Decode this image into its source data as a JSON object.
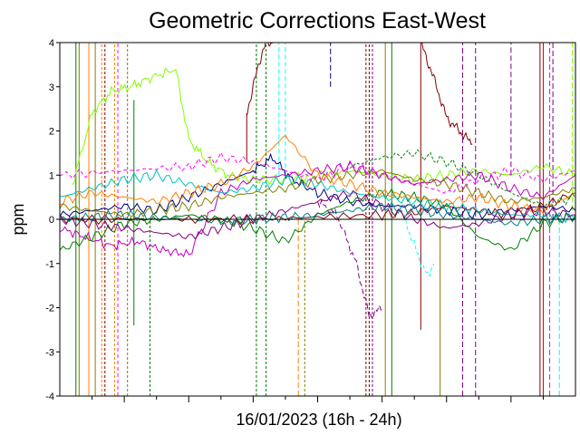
{
  "chart_data": {
    "type": "line",
    "title": "Geometric Corrections East-West",
    "xlabel": "16/01/2023 (16h - 24h)",
    "ylabel": "ppm",
    "ylim": [
      -4,
      4
    ],
    "xlim": [
      16,
      24
    ],
    "y_ticks": [
      "4",
      "3",
      "2",
      "1",
      "0",
      "-1",
      "-2",
      "-3",
      "-4"
    ],
    "y_tick_values": [
      4,
      3,
      2,
      1,
      0,
      -1,
      -2,
      -3,
      -4
    ],
    "x_major_ticks": [
      17,
      18,
      19,
      20,
      21,
      22,
      23
    ],
    "x_minor_ticks": [
      16.5,
      17.5,
      18.5,
      19.5,
      20.5,
      21.5,
      22.5,
      23.5
    ],
    "series": [
      {
        "color": "#80ff00",
        "dash": "solid",
        "x": [
          16.2,
          16.5,
          16.8,
          17.1,
          17.4,
          17.8,
          18.0,
          18.3,
          18.6,
          19.0,
          19.5,
          20.0,
          20.5,
          21.0,
          21.5,
          22.0,
          22.5,
          23.0,
          23.5,
          24.0
        ],
        "y": [
          0.8,
          2.4,
          2.9,
          3.0,
          3.2,
          3.4,
          1.8,
          1.3,
          1.0,
          0.9,
          0.9,
          1.0,
          1.1,
          1.0,
          0.9,
          1.0,
          1.1,
          1.0,
          1.2,
          1.0
        ]
      },
      {
        "color": "#000080",
        "dash": "solid",
        "x": [
          16.0,
          16.5,
          17.0,
          17.5,
          18.0,
          18.5,
          19.0,
          19.3,
          19.6,
          20.0,
          20.5,
          21.0,
          21.5,
          22.0,
          22.5,
          23.0,
          23.5,
          24.0
        ],
        "y": [
          0.1,
          0.2,
          0.3,
          0.2,
          0.5,
          0.8,
          1.1,
          1.4,
          0.9,
          0.6,
          0.4,
          0.3,
          0.3,
          0.2,
          0.1,
          0.2,
          0.3,
          0.2
        ]
      },
      {
        "color": "#c000c0",
        "dash": "solid",
        "x": [
          16.0,
          16.4,
          16.8,
          17.2,
          17.6,
          18.0,
          18.5,
          19.0,
          19.5,
          20.0,
          20.5,
          21.0,
          21.5,
          22.0,
          22.5,
          23.0,
          23.5,
          24.0
        ],
        "y": [
          -0.2,
          -0.4,
          -0.6,
          -0.5,
          -0.7,
          -0.8,
          0.6,
          0.9,
          1.0,
          1.1,
          1.2,
          1.0,
          0.8,
          0.9,
          1.0,
          0.7,
          0.5,
          1.0
        ]
      },
      {
        "color": "#800000",
        "dash": "solid",
        "x": [
          16.0,
          17.0,
          18.0,
          19.0,
          20.0,
          21.0,
          21.5,
          22.0,
          22.5,
          23.0,
          23.5,
          24.0
        ],
        "y": [
          0.0,
          0.0,
          0.0,
          0.0,
          0.05,
          0.1,
          0.15,
          0.3,
          0.2,
          0.1,
          0.3,
          0.6
        ]
      },
      {
        "color": "#008000",
        "dash": "solid",
        "x": [
          16.0,
          16.5,
          17.0,
          17.5,
          18.0,
          18.5,
          19.0,
          19.5,
          20.0,
          20.5,
          21.0,
          21.5,
          22.0,
          22.5,
          23.0,
          23.5,
          24.0
        ],
        "y": [
          -0.7,
          -0.4,
          -0.1,
          0.0,
          0.1,
          0.0,
          -0.2,
          -0.5,
          0.1,
          0.4,
          0.6,
          0.5,
          0.3,
          -0.4,
          -0.7,
          -0.1,
          0.1
        ]
      },
      {
        "color": "#00c0c0",
        "dash": "solid",
        "x": [
          16.0,
          16.5,
          17.0,
          17.5,
          18.0,
          18.5,
          19.0,
          19.5,
          20.0,
          20.5,
          21.0,
          21.5,
          22.0,
          22.5,
          23.0,
          23.5,
          24.0
        ],
        "y": [
          0.5,
          0.7,
          0.9,
          1.0,
          0.8,
          0.6,
          0.7,
          0.9,
          0.8,
          0.6,
          0.5,
          0.4,
          0.3,
          0.2,
          0.1,
          0.1,
          0.0
        ]
      },
      {
        "color": "#808000",
        "dash": "solid",
        "x": [
          16.0,
          16.5,
          17.0,
          17.5,
          18.0,
          18.5,
          19.0,
          19.5,
          20.0,
          20.5,
          21.0,
          21.5,
          22.0,
          22.5,
          23.0,
          23.5,
          24.0
        ],
        "y": [
          0.3,
          0.2,
          0.1,
          0.2,
          0.3,
          0.5,
          0.6,
          0.7,
          0.9,
          1.0,
          1.1,
          0.9,
          0.8,
          0.6,
          0.4,
          0.5,
          0.7
        ]
      },
      {
        "color": "#ff8000",
        "dash": "solid",
        "x": [
          16.0,
          16.5,
          17.0,
          17.5,
          18.0,
          18.5,
          19.0,
          19.5,
          20.0,
          20.5,
          21.0,
          21.5,
          22.0,
          22.5,
          23.0,
          23.5,
          24.0
        ],
        "y": [
          0.4,
          0.6,
          0.5,
          0.4,
          0.6,
          0.8,
          1.2,
          1.9,
          1.0,
          0.8,
          0.6,
          0.5,
          0.4,
          0.5,
          0.3,
          0.2,
          0.6
        ]
      },
      {
        "color": "#800080",
        "dash": "solid",
        "x": [
          16.0,
          16.5,
          17.0,
          17.5,
          18.0,
          18.5,
          19.0,
          19.5,
          20.0,
          20.5,
          21.0,
          21.5,
          22.0,
          22.5,
          23.0,
          23.5,
          24.0
        ],
        "y": [
          0.0,
          -0.1,
          -0.2,
          -0.3,
          -0.4,
          -0.2,
          0.0,
          0.2,
          0.4,
          0.6,
          0.3,
          0.0,
          -0.2,
          -0.1,
          0.1,
          0.2,
          0.1
        ]
      },
      {
        "color": "#008080",
        "dash": "solid",
        "x": [
          16.0,
          16.5,
          17.0,
          17.5,
          18.0,
          18.5,
          19.0,
          19.5,
          20.0,
          20.5,
          21.0,
          21.5,
          22.0,
          22.5,
          23.0,
          23.5,
          24.0
        ],
        "y": [
          0.0,
          0.05,
          0.1,
          0.05,
          0.0,
          -0.05,
          0.0,
          0.05,
          0.1,
          0.2,
          0.3,
          0.2,
          0.1,
          0.0,
          -0.1,
          0.0,
          0.05
        ]
      },
      {
        "color": "#800000",
        "dash": "solid",
        "x": [
          18.9,
          19.0,
          19.1,
          19.2,
          19.3
        ],
        "y": [
          2.4,
          3.0,
          3.6,
          4.0,
          4.0
        ]
      },
      {
        "color": "#800000",
        "dash": "solid",
        "x": [
          21.6,
          21.8,
          22.0,
          22.2,
          22.4
        ],
        "y": [
          4.0,
          3.2,
          2.3,
          2.0,
          1.7
        ]
      },
      {
        "color": "#ff00ff",
        "dash": "4,3",
        "x": [
          16.0,
          17.0,
          18.0,
          18.5,
          19.0,
          19.5,
          20.0,
          20.5,
          21.0,
          21.5,
          22.0,
          22.5,
          23.0,
          23.5,
          24.0
        ],
        "y": [
          1.0,
          1.1,
          1.2,
          1.4,
          1.3,
          1.1,
          0.9,
          1.2,
          1.0,
          0.8,
          0.6,
          0.9,
          1.1,
          0.9,
          1.1
        ]
      },
      {
        "color": "#800080",
        "dash": "6,3",
        "x": [
          20.0,
          20.3,
          20.6,
          20.8,
          21.0
        ],
        "y": [
          0.4,
          0.1,
          -1.0,
          -2.2,
          -2.0
        ]
      },
      {
        "color": "#00ffff",
        "dash": "4,3",
        "x": [
          21.3,
          21.5,
          21.7,
          21.8
        ],
        "y": [
          0.2,
          -0.6,
          -1.3,
          -1.0
        ]
      },
      {
        "color": "#008000",
        "dash": "3,2",
        "x": [
          20.5,
          21.0,
          21.5,
          22.0,
          22.5,
          23.0,
          23.5,
          24.0
        ],
        "y": [
          1.2,
          1.4,
          1.5,
          1.3,
          1.0,
          0.6,
          0.3,
          0.5
        ]
      }
    ],
    "spikes": [
      {
        "color": "#008000",
        "dash": "solid",
        "x": 16.25,
        "y1": -4,
        "y2": 4
      },
      {
        "color": "#808000",
        "dash": "solid",
        "x": 16.3,
        "y1": -4,
        "y2": 4
      },
      {
        "color": "#ff8000",
        "dash": "solid",
        "x": 16.45,
        "y1": -4,
        "y2": 4
      },
      {
        "color": "#808000",
        "dash": "solid",
        "x": 16.55,
        "y1": -4,
        "y2": 4
      },
      {
        "color": "#ff8000",
        "dash": "3,2",
        "x": 16.65,
        "y1": -4,
        "y2": 4
      },
      {
        "color": "#800000",
        "dash": "3,2",
        "x": 16.7,
        "y1": -4,
        "y2": 4
      },
      {
        "color": "#ff8000",
        "dash": "3,2",
        "x": 16.85,
        "y1": -4,
        "y2": 4
      },
      {
        "color": "#ff00ff",
        "dash": "4,3",
        "x": 16.9,
        "y1": -4,
        "y2": 4
      },
      {
        "color": "#808000",
        "dash": "3,2",
        "x": 17.05,
        "y1": -4,
        "y2": 4
      },
      {
        "color": "#008000",
        "dash": "solid",
        "x": 17.15,
        "y1": -2.4,
        "y2": 2.7
      },
      {
        "color": "#008000",
        "dash": "3,2",
        "x": 17.4,
        "y1": -4,
        "y2": 0
      },
      {
        "color": "#800000",
        "dash": "solid",
        "x": 18.9,
        "y1": 1.3,
        "y2": 2.4
      },
      {
        "color": "#008000",
        "dash": "3,2",
        "x": 19.05,
        "y1": -4,
        "y2": 4
      },
      {
        "color": "#008000",
        "dash": "3,2",
        "x": 19.2,
        "y1": -4,
        "y2": 4
      },
      {
        "color": "#00ffff",
        "dash": "5,3",
        "x": 19.4,
        "y1": 1.0,
        "y2": 4
      },
      {
        "color": "#00ffff",
        "dash": "5,3",
        "x": 19.5,
        "y1": 1.0,
        "y2": 4
      },
      {
        "color": "#ff8000",
        "dash": "6,3",
        "x": 19.7,
        "y1": -4,
        "y2": 0
      },
      {
        "color": "#808000",
        "dash": "3,2",
        "x": 19.8,
        "y1": -4,
        "y2": 0
      },
      {
        "color": "#000080",
        "dash": "6,3",
        "x": 20.2,
        "y1": 3.0,
        "y2": 4
      },
      {
        "color": "#800000",
        "dash": "3,2",
        "x": 20.75,
        "y1": -4,
        "y2": 4
      },
      {
        "color": "#800000",
        "dash": "3,2",
        "x": 20.8,
        "y1": -4,
        "y2": 4
      },
      {
        "color": "#800080",
        "dash": "3,2",
        "x": 20.85,
        "y1": -4,
        "y2": 4
      },
      {
        "color": "#808000",
        "dash": "solid",
        "x": 21.05,
        "y1": -4,
        "y2": 4
      },
      {
        "color": "#008000",
        "dash": "solid",
        "x": 21.15,
        "y1": -4,
        "y2": 4
      },
      {
        "color": "#800000",
        "dash": "solid",
        "x": 21.6,
        "y1": -2.5,
        "y2": 4
      },
      {
        "color": "#808000",
        "dash": "solid",
        "x": 21.9,
        "y1": -4,
        "y2": 0
      },
      {
        "color": "#800080",
        "dash": "6,3",
        "x": 22.25,
        "y1": -4,
        "y2": 4
      },
      {
        "color": "#800080",
        "dash": "6,3",
        "x": 22.45,
        "y1": -4,
        "y2": 4
      },
      {
        "color": "#800080",
        "dash": "6,3",
        "x": 23.0,
        "y1": 1.0,
        "y2": 4
      },
      {
        "color": "#800000",
        "dash": "solid",
        "x": 23.45,
        "y1": -4,
        "y2": 4
      },
      {
        "color": "#c00000",
        "dash": "solid",
        "x": 23.5,
        "y1": -4,
        "y2": 4
      },
      {
        "color": "#ff00ff",
        "dash": "6,3",
        "x": 23.6,
        "y1": -4,
        "y2": 4
      },
      {
        "color": "#800080",
        "dash": "6,3",
        "x": 23.65,
        "y1": 0,
        "y2": 4
      },
      {
        "color": "#00ffff",
        "dash": "6,3",
        "x": 23.75,
        "y1": -4,
        "y2": 0
      },
      {
        "color": "#80ff00",
        "dash": "6,3",
        "x": 23.95,
        "y1": 0.2,
        "y2": 4
      },
      {
        "color": "#80ff00",
        "dash": "6,3",
        "x": 24.05,
        "y1": -1.5,
        "y2": 0.5
      },
      {
        "color": "#800000",
        "dash": "3,2",
        "x": 24.6,
        "y1": 1.0,
        "y2": 4
      }
    ]
  }
}
